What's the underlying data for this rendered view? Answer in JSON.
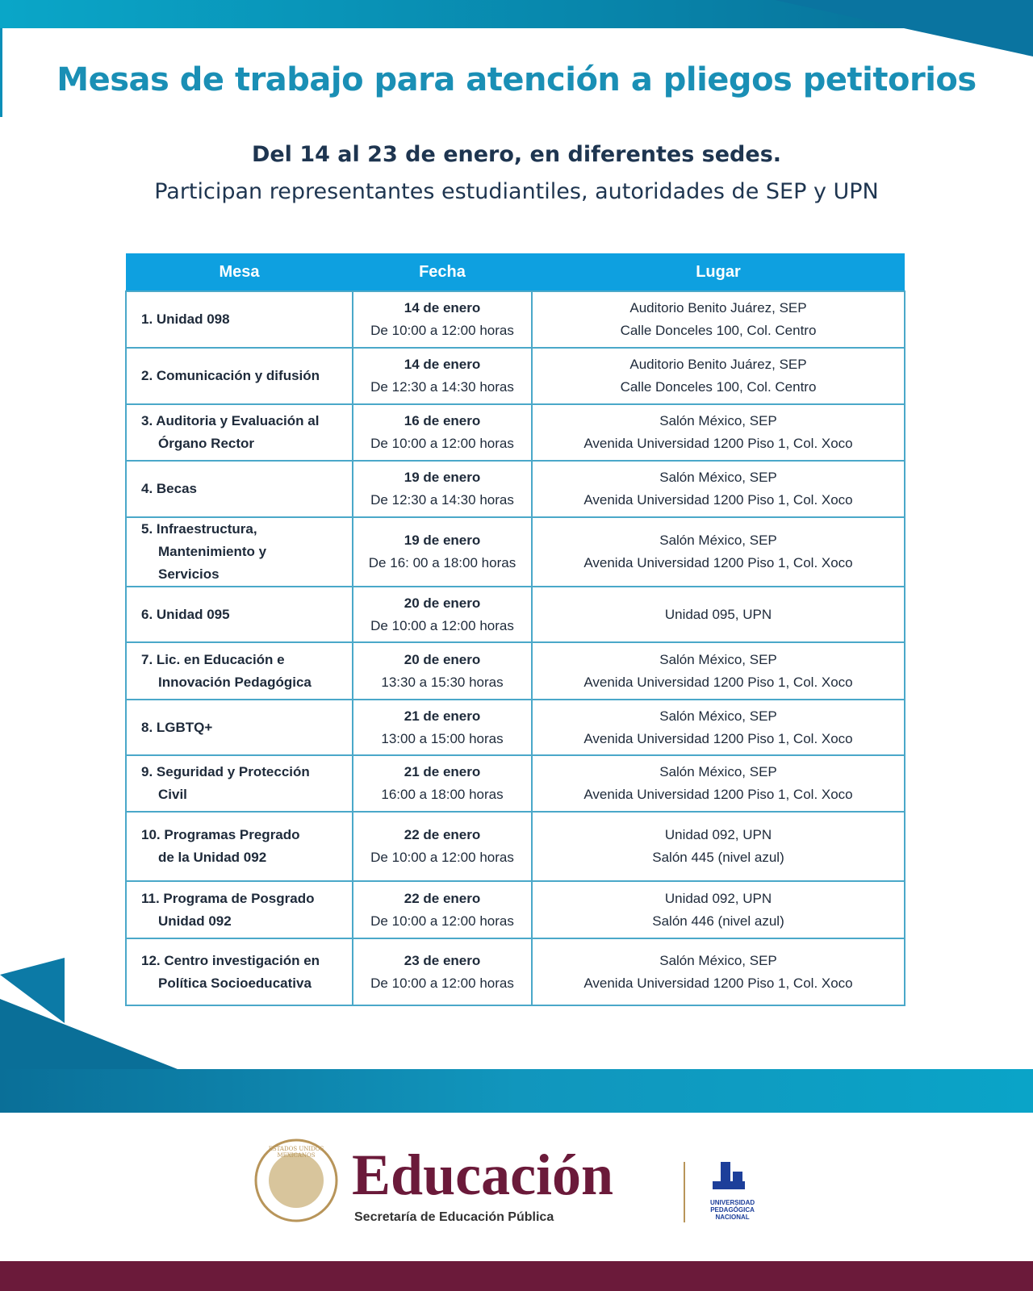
{
  "header": {
    "title": "Mesas de trabajo para atención a pliegos petitorios",
    "subtitle": "Del 14 al 23 de enero, en diferentes sedes.",
    "description": "Participan representantes estudiantiles, autoridades de SEP y UPN"
  },
  "table": {
    "headers": [
      "Mesa",
      "Fecha",
      "Lugar"
    ],
    "rows": [
      {
        "mesa": [
          "1. Unidad 098"
        ],
        "fecha": "14 de enero",
        "horario": "De 10:00 a 12:00 horas",
        "lugar": [
          "Auditorio Benito Juárez, SEP",
          "Calle Donceles 100, Col. Centro"
        ]
      },
      {
        "mesa": [
          "2. Comunicación y difusión"
        ],
        "fecha": "14 de enero",
        "horario": "De 12:30  a 14:30 horas",
        "lugar": [
          "Auditorio Benito Juárez, SEP",
          "Calle Donceles 100, Col. Centro"
        ]
      },
      {
        "mesa": [
          "3. Auditoria y Evaluación al",
          "Órgano Rector"
        ],
        "fecha": "16 de enero",
        "horario": "De 10:00 a 12:00 horas",
        "lugar": [
          "Salón México, SEP",
          "Avenida Universidad 1200 Piso 1, Col. Xoco"
        ]
      },
      {
        "mesa": [
          "4. Becas"
        ],
        "fecha": "19 de enero",
        "horario": "De 12:30  a 14:30 horas",
        "lugar": [
          "Salón México, SEP",
          "Avenida Universidad 1200 Piso 1, Col. Xoco"
        ]
      },
      {
        "mesa": [
          "5. Infraestructura,",
          "Mantenimiento y",
          "Servicios"
        ],
        "fecha": "19 de enero",
        "horario": "De 16: 00 a 18:00 horas",
        "lugar": [
          "Salón México, SEP",
          "Avenida Universidad 1200 Piso 1, Col. Xoco"
        ]
      },
      {
        "mesa": [
          "6. Unidad 095"
        ],
        "fecha": "20 de enero",
        "horario": "De 10:00 a 12:00 horas",
        "lugar": [
          "Unidad 095, UPN"
        ]
      },
      {
        "mesa": [
          "7. Lic. en Educación e",
          "Innovación Pedagógica"
        ],
        "fecha": "20 de enero",
        "horario": "13:30 a 15:30 horas",
        "lugar": [
          "Salón México, SEP",
          "Avenida Universidad 1200 Piso 1, Col. Xoco"
        ]
      },
      {
        "mesa": [
          "8. LGBTQ+"
        ],
        "fecha": "21 de enero",
        "horario": "13:00 a 15:00 horas",
        "lugar": [
          "Salón México, SEP",
          "Avenida Universidad 1200 Piso 1, Col. Xoco"
        ]
      },
      {
        "mesa": [
          "9. Seguridad y Protección",
          "Civil"
        ],
        "fecha": "21 de enero",
        "horario": "16:00 a 18:00 horas",
        "lugar": [
          "Salón México, SEP",
          "Avenida Universidad 1200 Piso 1, Col. Xoco"
        ]
      },
      {
        "mesa": [
          "10. Programas Pregrado",
          "de la Unidad 092"
        ],
        "fecha": "22 de enero",
        "horario": "De 10:00 a 12:00 horas",
        "lugar": [
          "Unidad 092, UPN",
          "Salón 445 (nivel azul)"
        ]
      },
      {
        "mesa": [
          "11. Programa de Posgrado",
          "Unidad 092"
        ],
        "fecha": "22 de enero",
        "horario": "De 10:00 a 12:00 horas",
        "lugar": [
          "Unidad 092, UPN",
          "Salón 446 (nivel azul)"
        ]
      },
      {
        "mesa": [
          "12. Centro investigación en",
          "Política Socioeducativa"
        ],
        "fecha": "23 de enero",
        "horario": "De 10:00 a 12:00 horas",
        "lugar": [
          "Salón México, SEP",
          "Avenida Universidad 1200 Piso 1, Col. Xoco"
        ]
      }
    ]
  },
  "footer": {
    "brand": "Educación",
    "agency": "Secretaría de Educación Pública",
    "seal": "ESTADOS UNIDOS MEXICANOS",
    "upn": [
      "UNIVERSIDAD",
      "PEDAGÓGICA",
      "NACIONAL"
    ]
  }
}
